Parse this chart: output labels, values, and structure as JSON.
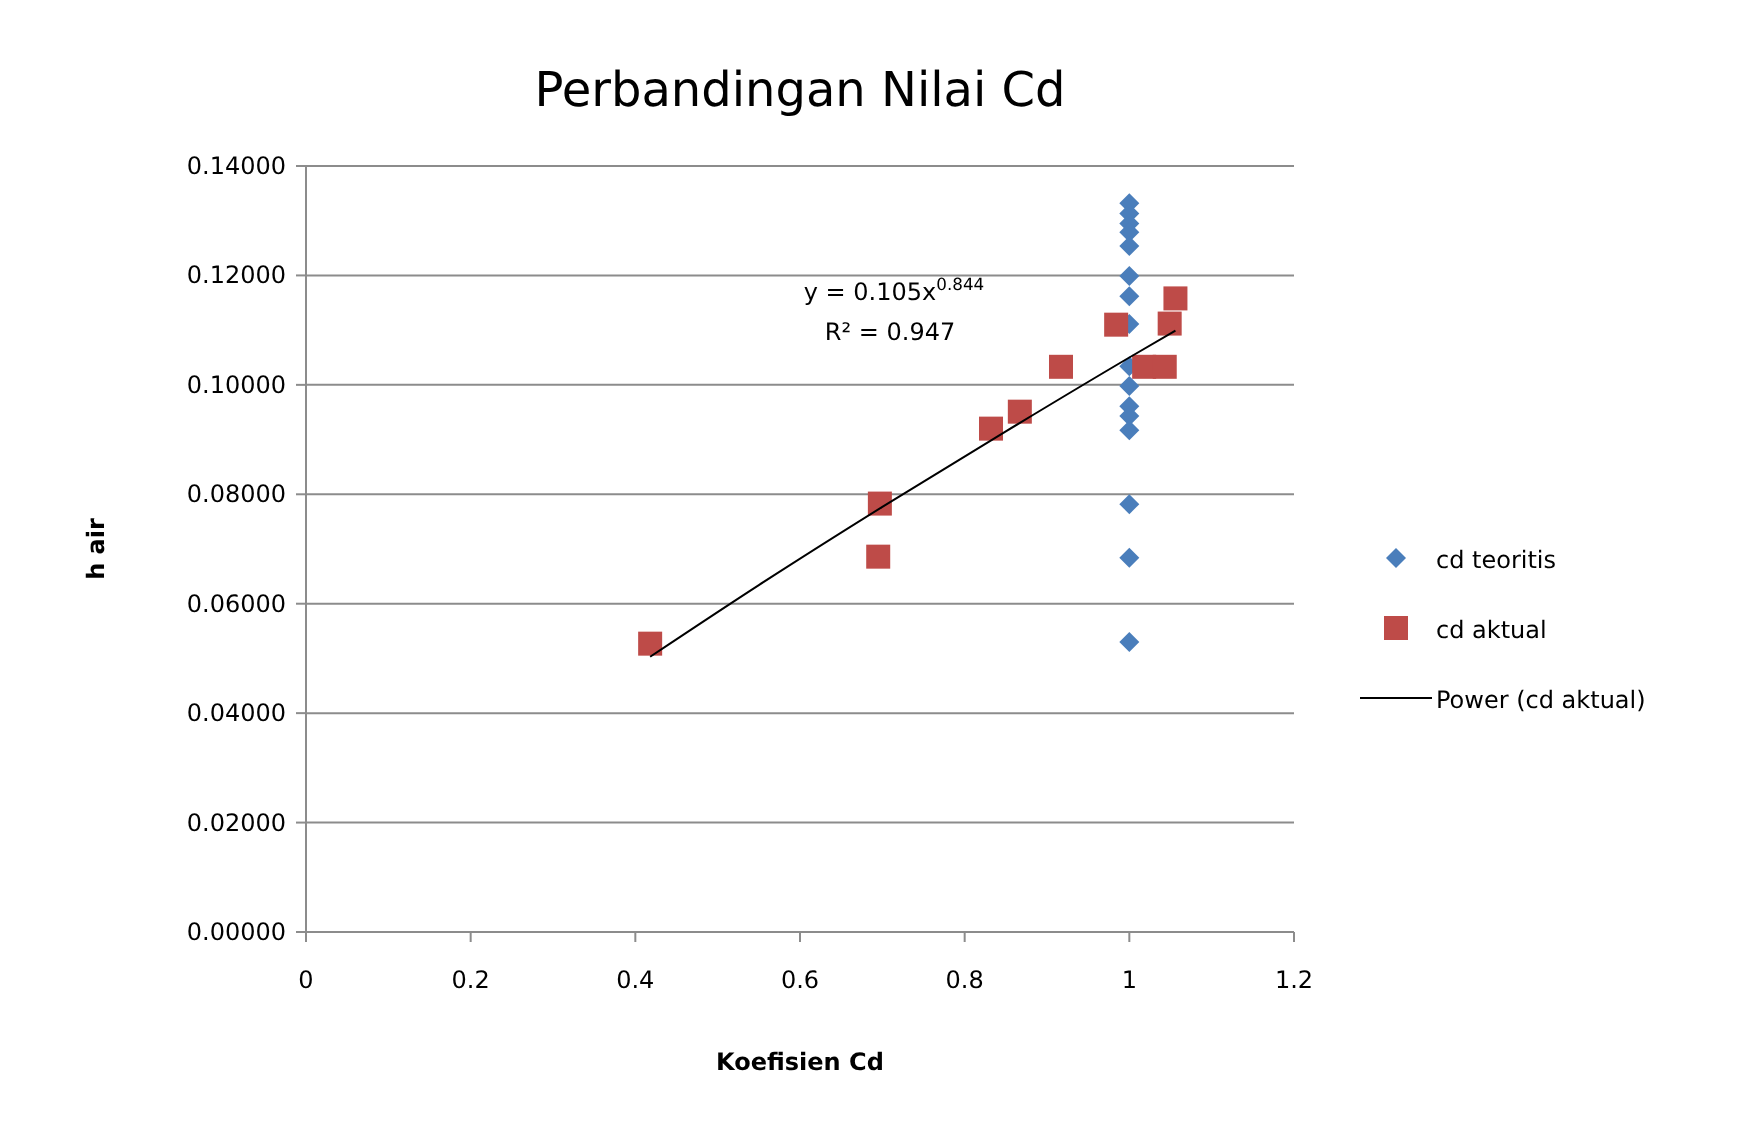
{
  "chart_data": {
    "type": "scatter",
    "title": "Perbandingan Nilai Cd",
    "xlabel": "Koefisien Cd",
    "ylabel": "h air",
    "xlim": [
      0,
      1.2
    ],
    "xticks": [
      0,
      0.2,
      0.4,
      0.6,
      0.8,
      1,
      1.2
    ],
    "ylim": [
      0,
      0.14
    ],
    "yticks": [
      {
        "value": 0,
        "label": "0.00000"
      },
      {
        "value": 0.02,
        "label": "0.02000"
      },
      {
        "value": 0.04,
        "label": "0.04000"
      },
      {
        "value": 0.06,
        "label": "0.06000"
      },
      {
        "value": 0.08,
        "label": "0.08000"
      },
      {
        "value": 0.1,
        "label": "0.10000"
      },
      {
        "value": 0.12,
        "label": "0.12000"
      },
      {
        "value": 0.14,
        "label": "0.14000"
      }
    ],
    "grid": "y",
    "legend": "right",
    "annotations": [
      "y = 0.105x$^{0.844}$",
      "R² = 0.947"
    ],
    "series": [
      {
        "name": "cd teoritis",
        "marker": "diamond",
        "color": "#4a7ebb",
        "x": [
          1,
          1,
          1,
          1,
          1,
          1,
          1,
          1,
          1,
          1,
          1,
          1,
          1,
          1,
          1,
          1
        ],
        "values": [
          0.1332,
          0.1313,
          0.1295,
          0.1279,
          0.1254,
          0.1199,
          0.1162,
          0.1111,
          0.1034,
          0.0998,
          0.0961,
          0.0943,
          0.0917,
          0.0782,
          0.0684,
          0.053
        ]
      },
      {
        "name": "cd aktual",
        "marker": "square",
        "color": "#be4b48",
        "x": [
          0.418,
          0.697,
          0.695,
          0.832,
          0.867,
          0.917,
          0.984,
          1.018,
          1.043,
          1.049,
          1.056
        ],
        "values": [
          0.0527,
          0.0783,
          0.0686,
          0.092,
          0.0951,
          0.1033,
          0.111,
          0.1033,
          0.1033,
          0.1112,
          0.1158
        ]
      },
      {
        "name": "Power (cd aktual)",
        "type": "line",
        "marker": "none",
        "line_style": "solid",
        "color": "#000000",
        "x": [
          0.418,
          0.55,
          0.7,
          0.85,
          1,
          1.056
        ],
        "values": [
          0.0503,
          0.0634,
          0.0777,
          0.0915,
          0.105,
          0.1099
        ]
      }
    ]
  }
}
